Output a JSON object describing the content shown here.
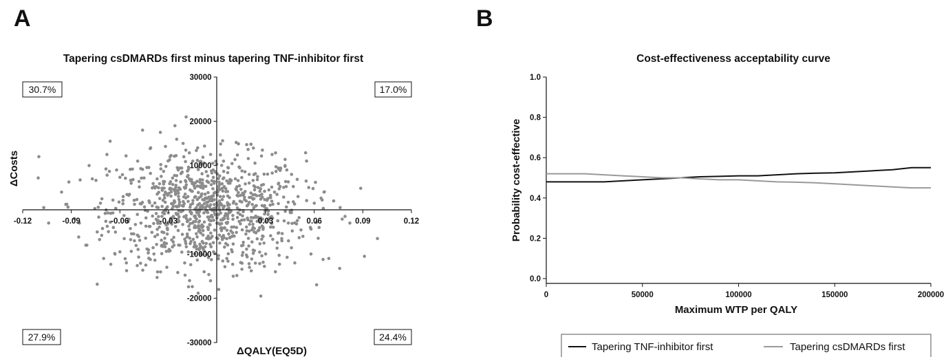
{
  "panels": {
    "a_label": "A",
    "b_label": "B"
  },
  "chart_data": [
    {
      "type": "scatter",
      "title": "Tapering csDMARDs first minus tapering TNF-inhibitor first",
      "xlabel": "ΔQALY(EQ5D)",
      "ylabel": "ΔCosts",
      "xlim": [
        -0.12,
        0.12
      ],
      "ylim": [
        -30000,
        30000
      ],
      "x_ticks": [
        "-0.12",
        "-0.09",
        "-0.06",
        "-0.03",
        "0.03",
        "0.06",
        "0.09",
        "0.12"
      ],
      "x_tick_values": [
        -0.12,
        -0.09,
        -0.06,
        -0.03,
        0.03,
        0.06,
        0.09,
        0.12
      ],
      "y_ticks": [
        "30000",
        "20000",
        "10000",
        "-10000",
        "-20000",
        "-30000"
      ],
      "y_tick_values": [
        30000,
        20000,
        10000,
        -10000,
        -20000,
        -30000
      ],
      "quadrant_percentages": {
        "top_left": "30.7%",
        "top_right": "17.0%",
        "bottom_left": "27.9%",
        "bottom_right": "24.4%"
      },
      "point_color": "#8c8c8c",
      "n_points": 1000,
      "points": [
        [
          -0.11,
          12000
        ],
        [
          -0.107,
          500
        ],
        [
          -0.104,
          -3000
        ],
        [
          -0.096,
          4000
        ],
        [
          -0.092,
          600
        ],
        [
          -0.088,
          -2000
        ],
        [
          -0.085,
          -3000
        ],
        [
          -0.081,
          -8000
        ],
        [
          -0.079,
          10000
        ],
        [
          -0.077,
          7000
        ],
        [
          -0.074,
          -5000
        ],
        [
          -0.072,
          1500
        ],
        [
          -0.07,
          -11000
        ],
        [
          -0.068,
          12500
        ],
        [
          -0.066,
          15500
        ],
        [
          -0.064,
          -4000
        ],
        [
          -0.062,
          9000
        ],
        [
          -0.06,
          -9500
        ],
        [
          -0.058,
          3000
        ],
        [
          -0.056,
          -12000
        ],
        [
          -0.053,
          6000
        ],
        [
          -0.051,
          -7000
        ],
        [
          -0.049,
          11000
        ],
        [
          -0.047,
          -3000
        ],
        [
          -0.046,
          18000
        ],
        [
          -0.044,
          -12500
        ],
        [
          -0.042,
          2000
        ],
        [
          -0.041,
          14000
        ],
        [
          -0.039,
          -10000
        ],
        [
          -0.037,
          7000
        ],
        [
          -0.035,
          17500
        ],
        [
          -0.034,
          -5000
        ],
        [
          -0.032,
          4000
        ],
        [
          -0.031,
          -13000
        ],
        [
          -0.029,
          12000
        ],
        [
          -0.027,
          -1500
        ],
        [
          -0.026,
          19000
        ],
        [
          -0.024,
          9000
        ],
        [
          -0.023,
          -8000
        ],
        [
          -0.021,
          15000
        ],
        [
          -0.02,
          -12000
        ],
        [
          -0.018,
          3000
        ],
        [
          -0.017,
          -16000
        ],
        [
          -0.015,
          11000
        ],
        [
          -0.014,
          -4000
        ],
        [
          -0.012,
          14000
        ],
        [
          -0.011,
          -9000
        ],
        [
          -0.009,
          6000
        ],
        [
          -0.008,
          -14000
        ],
        [
          -0.006,
          1000
        ],
        [
          -0.004,
          12500
        ],
        [
          -0.003,
          -6000
        ],
        [
          -0.001,
          8500
        ],
        [
          0.001,
          -18000
        ],
        [
          0.002,
          3000
        ],
        [
          0.004,
          11000
        ],
        [
          0.006,
          -11000
        ],
        [
          0.008,
          6000
        ],
        [
          0.01,
          -15000
        ],
        [
          0.012,
          -4000
        ],
        [
          0.014,
          9500
        ],
        [
          0.016,
          -8000
        ],
        [
          0.018,
          2000
        ],
        [
          0.02,
          -13000
        ],
        [
          0.021,
          14800
        ],
        [
          0.023,
          -5000
        ],
        [
          0.025,
          7500
        ],
        [
          0.027,
          -19500
        ],
        [
          0.028,
          13500
        ],
        [
          0.03,
          -10000
        ],
        [
          0.032,
          4500
        ],
        [
          0.034,
          12500
        ],
        [
          0.036,
          -14000
        ],
        [
          0.038,
          6000
        ],
        [
          0.04,
          -7000
        ],
        [
          0.042,
          10000
        ],
        [
          0.044,
          -3000
        ],
        [
          0.046,
          8000
        ],
        [
          0.048,
          -12000
        ],
        [
          0.05,
          3000
        ],
        [
          0.053,
          -6000
        ],
        [
          0.055,
          6500
        ],
        [
          0.058,
          -10000
        ],
        [
          0.06,
          1500
        ],
        [
          0.063,
          -4000
        ],
        [
          0.066,
          4000
        ],
        [
          0.069,
          -11000
        ],
        [
          0.072,
          2000
        ],
        [
          0.076,
          500
        ],
        [
          0.079,
          -1500
        ],
        [
          0.082,
          -3000
        ],
        [
          0.091,
          -10500
        ],
        [
          0.099,
          -6500
        ]
      ]
    },
    {
      "type": "line",
      "title": "Cost-effectiveness acceptability curve",
      "xlabel": "Maximum WTP per QALY",
      "ylabel": "Probability cost-effective",
      "xlim": [
        0,
        200000
      ],
      "ylim": [
        0,
        1.0
      ],
      "x_ticks": [
        "0",
        "50000",
        "100000",
        "150000",
        "200000"
      ],
      "x_tick_values": [
        0,
        50000,
        100000,
        150000,
        200000
      ],
      "y_ticks": [
        "0.0",
        "0.2",
        "0.4",
        "0.6",
        "0.8",
        "1.0"
      ],
      "y_tick_values": [
        0.0,
        0.2,
        0.4,
        0.6,
        0.8,
        1.0
      ],
      "x": [
        0,
        10000,
        20000,
        30000,
        40000,
        50000,
        60000,
        70000,
        80000,
        90000,
        100000,
        110000,
        120000,
        130000,
        140000,
        150000,
        160000,
        170000,
        180000,
        190000,
        200000
      ],
      "series": [
        {
          "name": "Tapering TNF-inhibitor first",
          "color": "#111111",
          "values": [
            0.48,
            0.48,
            0.48,
            0.48,
            0.485,
            0.49,
            0.495,
            0.5,
            0.505,
            0.507,
            0.51,
            0.51,
            0.515,
            0.52,
            0.523,
            0.525,
            0.53,
            0.535,
            0.54,
            0.55,
            0.55
          ]
        },
        {
          "name": "Tapering csDMARDs first",
          "color": "#999999",
          "values": [
            0.52,
            0.52,
            0.52,
            0.515,
            0.51,
            0.505,
            0.5,
            0.5,
            0.495,
            0.49,
            0.49,
            0.485,
            0.48,
            0.478,
            0.475,
            0.47,
            0.465,
            0.46,
            0.455,
            0.45,
            0.45
          ]
        }
      ],
      "legend_position": "bottom"
    }
  ]
}
